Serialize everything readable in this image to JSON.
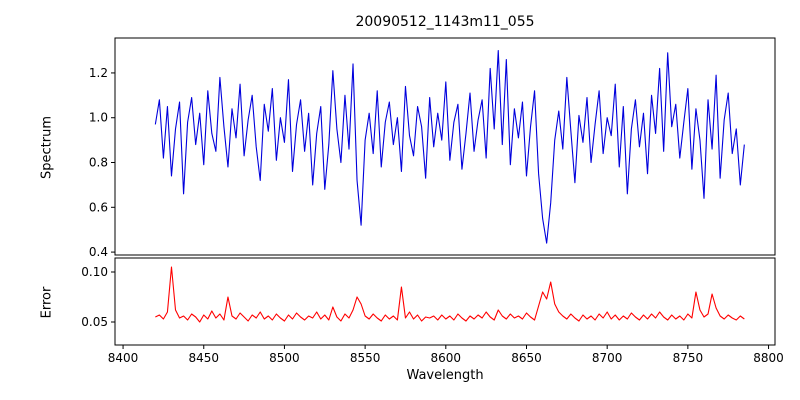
{
  "title": "20090512_1143m11_055",
  "x_axis": {
    "label": "Wavelength",
    "xlim": [
      8395,
      8804
    ],
    "ticks": [
      8400,
      8450,
      8500,
      8550,
      8600,
      8650,
      8700,
      8750,
      8800
    ],
    "tick_labels": [
      "8400",
      "8450",
      "8500",
      "8550",
      "8600",
      "8650",
      "8700",
      "8750",
      "8800"
    ]
  },
  "chart_data": [
    {
      "type": "line",
      "name": "spectrum",
      "ylabel": "Spectrum",
      "color": "#0000dd",
      "ylim": [
        0.387,
        1.356
      ],
      "yticks": [
        0.4,
        0.6,
        0.8,
        1.0,
        1.2
      ],
      "ytick_labels": [
        "0.4",
        "0.6",
        "0.8",
        "1.0",
        "1.2"
      ],
      "x_start": 8420,
      "x_step": 2.5,
      "values": [
        0.97,
        1.08,
        0.82,
        1.05,
        0.74,
        0.95,
        1.07,
        0.66,
        0.98,
        1.09,
        0.88,
        1.02,
        0.79,
        1.12,
        0.93,
        0.85,
        1.18,
        0.96,
        0.78,
        1.04,
        0.91,
        1.15,
        0.83,
        0.99,
        1.1,
        0.87,
        0.72,
        1.06,
        0.94,
        1.13,
        0.81,
        1.0,
        0.89,
        1.17,
        0.76,
        0.97,
        1.08,
        0.85,
        1.02,
        0.7,
        0.93,
        1.05,
        0.68,
        0.88,
        1.21,
        0.95,
        0.8,
        1.1,
        0.86,
        1.24,
        0.72,
        0.52,
        0.9,
        1.02,
        0.84,
        1.12,
        0.78,
        0.98,
        1.07,
        0.88,
        1.0,
        0.76,
        1.14,
        0.92,
        0.83,
        1.05,
        0.96,
        0.73,
        1.09,
        0.87,
        1.02,
        0.9,
        1.16,
        0.81,
        0.98,
        1.06,
        0.77,
        0.93,
        1.11,
        0.85,
        0.99,
        1.08,
        0.82,
        1.22,
        0.95,
        1.3,
        0.88,
        1.26,
        0.79,
        1.04,
        0.91,
        1.07,
        0.74,
        0.96,
        1.12,
        0.75,
        0.55,
        0.44,
        0.62,
        0.9,
        1.03,
        0.86,
        1.18,
        0.94,
        0.71,
        1.01,
        0.89,
        1.09,
        0.8,
        0.97,
        1.12,
        0.84,
        1.0,
        0.92,
        1.15,
        0.78,
        1.05,
        0.66,
        0.95,
        1.08,
        0.87,
        1.02,
        0.75,
        1.1,
        0.93,
        1.22,
        0.85,
        1.29,
        0.96,
        1.06,
        0.82,
        0.98,
        1.13,
        0.77,
        1.04,
        0.9,
        0.64,
        1.08,
        0.86,
        1.19,
        0.73,
        0.99,
        1.11,
        0.84,
        0.95,
        0.7,
        0.88
      ]
    },
    {
      "type": "line",
      "name": "error",
      "ylabel": "Error",
      "color": "#ff0000",
      "ylim": [
        0.027,
        0.114
      ],
      "yticks": [
        0.05,
        0.1
      ],
      "ytick_labels": [
        "0.05",
        "0.10"
      ],
      "x_start": 8420,
      "x_step": 2.5,
      "values": [
        0.055,
        0.057,
        0.053,
        0.06,
        0.105,
        0.062,
        0.054,
        0.056,
        0.052,
        0.058,
        0.055,
        0.05,
        0.057,
        0.053,
        0.061,
        0.054,
        0.058,
        0.052,
        0.075,
        0.056,
        0.053,
        0.059,
        0.055,
        0.051,
        0.057,
        0.054,
        0.06,
        0.053,
        0.056,
        0.052,
        0.058,
        0.054,
        0.051,
        0.057,
        0.053,
        0.059,
        0.055,
        0.052,
        0.056,
        0.054,
        0.06,
        0.053,
        0.057,
        0.052,
        0.065,
        0.055,
        0.051,
        0.058,
        0.054,
        0.062,
        0.075,
        0.068,
        0.056,
        0.053,
        0.058,
        0.054,
        0.051,
        0.057,
        0.053,
        0.056,
        0.052,
        0.085,
        0.054,
        0.06,
        0.053,
        0.057,
        0.051,
        0.055,
        0.054,
        0.056,
        0.052,
        0.057,
        0.053,
        0.056,
        0.052,
        0.058,
        0.054,
        0.051,
        0.056,
        0.053,
        0.057,
        0.054,
        0.06,
        0.055,
        0.052,
        0.062,
        0.056,
        0.053,
        0.058,
        0.054,
        0.056,
        0.053,
        0.059,
        0.055,
        0.052,
        0.066,
        0.08,
        0.073,
        0.09,
        0.068,
        0.06,
        0.056,
        0.053,
        0.058,
        0.054,
        0.051,
        0.057,
        0.053,
        0.056,
        0.052,
        0.058,
        0.054,
        0.06,
        0.053,
        0.057,
        0.052,
        0.056,
        0.053,
        0.059,
        0.055,
        0.052,
        0.057,
        0.053,
        0.058,
        0.054,
        0.06,
        0.055,
        0.052,
        0.057,
        0.053,
        0.056,
        0.052,
        0.058,
        0.054,
        0.08,
        0.062,
        0.055,
        0.058,
        0.078,
        0.064,
        0.056,
        0.053,
        0.057,
        0.054,
        0.052,
        0.056,
        0.053
      ]
    }
  ]
}
